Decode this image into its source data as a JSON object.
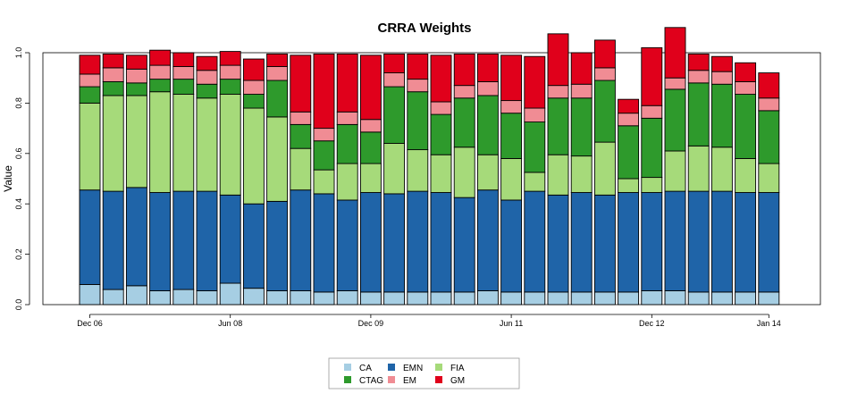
{
  "chart_data": {
    "type": "bar",
    "stacked": true,
    "title": "CRRA Weights",
    "xlabel": "",
    "ylabel": "Value",
    "ylim": [
      0,
      1
    ],
    "yticks": [
      "0.0",
      "0.2",
      "0.4",
      "0.6",
      "0.8",
      "1.0"
    ],
    "xtick_labels": [
      {
        "label": "Dec 06",
        "bar_index": 0
      },
      {
        "label": "Jun 08",
        "bar_index": 6
      },
      {
        "label": "Dec 09",
        "bar_index": 12
      },
      {
        "label": "Jun 11",
        "bar_index": 18
      },
      {
        "label": "Dec 12",
        "bar_index": 24
      },
      {
        "label": "Jan 14",
        "bar_index": 29
      }
    ],
    "series": [
      {
        "name": "CA",
        "color": "#A6CEE3",
        "values": [
          0.08,
          0.06,
          0.075,
          0.055,
          0.06,
          0.055,
          0.085,
          0.065,
          0.055,
          0.055,
          0.05,
          0.055,
          0.05,
          0.05,
          0.05,
          0.05,
          0.05,
          0.055,
          0.05,
          0.05,
          0.05,
          0.05,
          0.05,
          0.05,
          0.055,
          0.055,
          0.05,
          0.05,
          0.05,
          0.05
        ]
      },
      {
        "name": "EMN",
        "color": "#1F64A8",
        "values": [
          0.375,
          0.39,
          0.39,
          0.39,
          0.39,
          0.395,
          0.35,
          0.335,
          0.355,
          0.4,
          0.39,
          0.36,
          0.395,
          0.39,
          0.4,
          0.395,
          0.375,
          0.4,
          0.365,
          0.4,
          0.385,
          0.395,
          0.385,
          0.395,
          0.39,
          0.395,
          0.4,
          0.4,
          0.395,
          0.395
        ]
      },
      {
        "name": "FIA",
        "color": "#A6DA7A",
        "values": [
          0.345,
          0.38,
          0.365,
          0.4,
          0.385,
          0.37,
          0.4,
          0.38,
          0.335,
          0.165,
          0.095,
          0.145,
          0.115,
          0.2,
          0.165,
          0.15,
          0.2,
          0.14,
          0.165,
          0.075,
          0.16,
          0.145,
          0.21,
          0.055,
          0.06,
          0.16,
          0.18,
          0.175,
          0.135,
          0.115
        ]
      },
      {
        "name": "CTAG",
        "color": "#2E9A2C",
        "values": [
          0.065,
          0.055,
          0.05,
          0.05,
          0.06,
          0.055,
          0.06,
          0.055,
          0.145,
          0.095,
          0.115,
          0.155,
          0.125,
          0.225,
          0.23,
          0.16,
          0.195,
          0.235,
          0.18,
          0.2,
          0.225,
          0.23,
          0.245,
          0.21,
          0.235,
          0.245,
          0.25,
          0.25,
          0.255,
          0.21
        ]
      },
      {
        "name": "EM",
        "color": "#F08C94",
        "values": [
          0.05,
          0.055,
          0.055,
          0.055,
          0.05,
          0.055,
          0.055,
          0.055,
          0.055,
          0.05,
          0.05,
          0.05,
          0.05,
          0.055,
          0.05,
          0.05,
          0.05,
          0.055,
          0.05,
          0.055,
          0.05,
          0.055,
          0.05,
          0.05,
          0.05,
          0.045,
          0.05,
          0.05,
          0.05,
          0.05
        ]
      },
      {
        "name": "GM",
        "color": "#E0001B",
        "values": [
          0.075,
          0.055,
          0.055,
          0.06,
          0.055,
          0.055,
          0.055,
          0.085,
          0.05,
          0.225,
          0.295,
          0.23,
          0.255,
          0.075,
          0.1,
          0.185,
          0.125,
          0.11,
          0.18,
          0.205,
          0.205,
          0.125,
          0.11,
          0.055,
          0.23,
          0.2,
          0.065,
          0.06,
          0.075,
          0.1
        ]
      }
    ],
    "legend": {
      "position": "bottom-center",
      "columns": 3
    },
    "grid": false
  }
}
